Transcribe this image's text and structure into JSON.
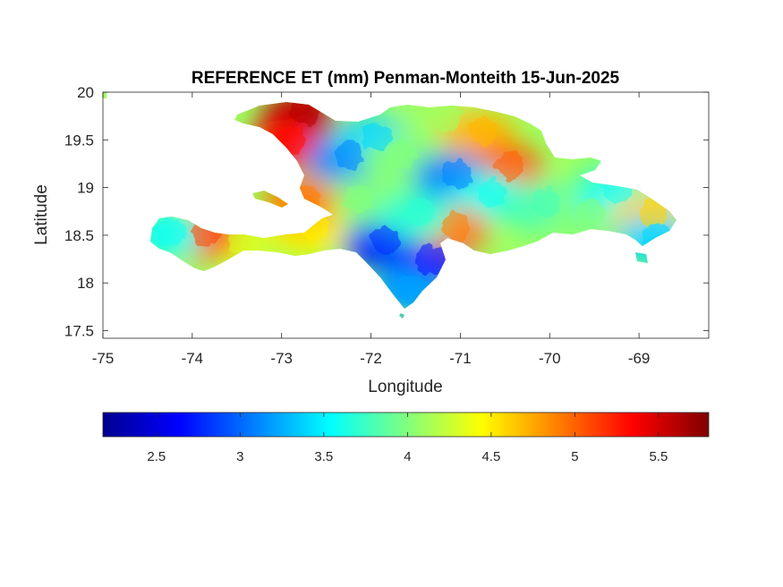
{
  "chart_data": {
    "type": "heatmap",
    "title": "REFERENCE ET (mm) Penman-Monteith 15-Jun-2025",
    "xlabel": "Longitude",
    "ylabel": "Latitude",
    "xlim": [
      -75,
      -68.22
    ],
    "ylim": [
      17.42,
      20
    ],
    "xticks": [
      -75,
      -74,
      -73,
      -72,
      -71,
      -70,
      -69
    ],
    "yticks": [
      17.5,
      18,
      18.5,
      19,
      19.5,
      20
    ],
    "xtick_labels": [
      "-75",
      "-74",
      "-73",
      "-72",
      "-71",
      "-70",
      "-69"
    ],
    "ytick_labels": [
      "17.5",
      "18",
      "18.5",
      "19",
      "19.5",
      "20"
    ],
    "colormap": "jet",
    "colorbar": {
      "orientation": "horizontal",
      "location": "bottom",
      "clim": [
        2.18,
        5.8
      ],
      "ticks": [
        2.5,
        3,
        3.5,
        4,
        4.5,
        5,
        5.5
      ],
      "tick_labels": [
        "2.5",
        "3",
        "3.5",
        "4",
        "4.5",
        "5",
        "5.5"
      ]
    },
    "grid": false,
    "regions": [
      {
        "name": "",
        "lon": -72.8,
        "lat": 19.75,
        "value": 5.6
      },
      {
        "name": "",
        "lon": -72.95,
        "lat": 19.45,
        "value": 5.3
      },
      {
        "name": "",
        "lon": -72.3,
        "lat": 19.3,
        "value": 3.1
      },
      {
        "name": "",
        "lon": -72.0,
        "lat": 19.5,
        "value": 3.4
      },
      {
        "name": "",
        "lon": -71.7,
        "lat": 19.3,
        "value": 4.0
      },
      {
        "name": "",
        "lon": -71.2,
        "lat": 19.7,
        "value": 4.1
      },
      {
        "name": "",
        "lon": -70.8,
        "lat": 19.55,
        "value": 4.7
      },
      {
        "name": "",
        "lon": -70.5,
        "lat": 19.2,
        "value": 5.0
      },
      {
        "name": "",
        "lon": -71.1,
        "lat": 19.1,
        "value": 3.1
      },
      {
        "name": "",
        "lon": -70.7,
        "lat": 18.9,
        "value": 3.6
      },
      {
        "name": "",
        "lon": -70.1,
        "lat": 18.8,
        "value": 3.8
      },
      {
        "name": "",
        "lon": -69.6,
        "lat": 18.7,
        "value": 4.0
      },
      {
        "name": "",
        "lon": -69.3,
        "lat": 18.95,
        "value": 3.6
      },
      {
        "name": "",
        "lon": -68.9,
        "lat": 18.7,
        "value": 4.6
      },
      {
        "name": "",
        "lon": -68.85,
        "lat": 18.45,
        "value": 3.4
      },
      {
        "name": "",
        "lon": -71.9,
        "lat": 18.4,
        "value": 2.8
      },
      {
        "name": "",
        "lon": -71.4,
        "lat": 18.2,
        "value": 2.7
      },
      {
        "name": "",
        "lon": -71.6,
        "lat": 17.9,
        "value": 3.2
      },
      {
        "name": "",
        "lon": -72.2,
        "lat": 18.85,
        "value": 4.0
      },
      {
        "name": "",
        "lon": -72.7,
        "lat": 18.55,
        "value": 4.5
      },
      {
        "name": "",
        "lon": -73.5,
        "lat": 18.4,
        "value": 4.3
      },
      {
        "name": "",
        "lon": -73.9,
        "lat": 18.5,
        "value": 5.1
      },
      {
        "name": "",
        "lon": -74.3,
        "lat": 18.5,
        "value": 3.6
      },
      {
        "name": "",
        "lon": -71.1,
        "lat": 18.55,
        "value": 4.9
      },
      {
        "name": "",
        "lon": -72.8,
        "lat": 18.85,
        "value": 4.9
      },
      {
        "name": "",
        "lon": -71.5,
        "lat": 18.7,
        "value": 3.7
      }
    ]
  }
}
